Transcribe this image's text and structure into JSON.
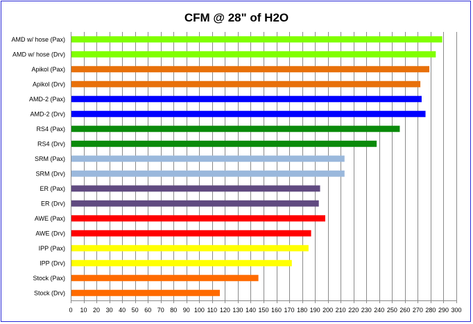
{
  "chart_data": {
    "type": "bar",
    "orientation": "horizontal",
    "title": "CFM @ 28\" of H2O",
    "xlabel": "",
    "ylabel": "",
    "xlim": [
      0,
      300
    ],
    "x_tick_step": 10,
    "grid": true,
    "legend": "none",
    "categories": [
      "AMD w/ hose (Pax)",
      "AMD w/ hose (Drv)",
      "Apikol (Pax)",
      "Apikol (Drv)",
      "AMD-2 (Pax)",
      "AMD-2 (Drv)",
      "RS4 (Pax)",
      "RS4 (Drv)",
      "SRM (Pax)",
      "SRM (Drv)",
      "ER (Pax)",
      "ER (Drv)",
      "AWE (Pax)",
      "AWE (Drv)",
      "IPP (Pax)",
      "IPP (Drv)",
      "Stock (Pax)",
      "Stock (Drv)"
    ],
    "values": [
      289,
      284,
      279,
      272,
      273,
      276,
      256,
      238,
      213,
      213,
      194,
      193,
      198,
      187,
      185,
      172,
      146,
      116
    ],
    "colors": [
      "#80ff00",
      "#80ff00",
      "#e8700a",
      "#e8700a",
      "#0000ff",
      "#0000ff",
      "#0a8a0a",
      "#0a8a0a",
      "#9ab8dc",
      "#9ab8dc",
      "#604a80",
      "#604a80",
      "#ff0000",
      "#ff0000",
      "#ffff00",
      "#ffff00",
      "#ff6a00",
      "#ff6a00"
    ]
  }
}
